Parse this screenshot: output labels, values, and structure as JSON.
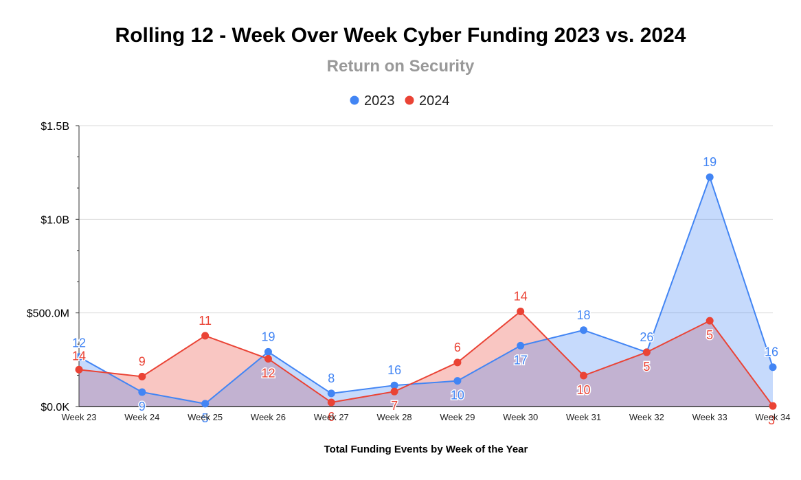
{
  "chart_data": {
    "type": "area",
    "title": "Rolling 12 - Week Over Week Cyber Funding 2023 vs. 2024",
    "subtitle": "Return on Security",
    "xlabel": "Total Funding Events by Week of the Year",
    "ylabel": "",
    "categories": [
      "Week 23",
      "Week 24",
      "Week 25",
      "Week 26",
      "Week 27",
      "Week 28",
      "Week 29",
      "Week 30",
      "Week 31",
      "Week 32",
      "Week 33",
      "Week 34"
    ],
    "ylim": [
      0,
      1500000000
    ],
    "y_ticks": [
      {
        "value": 0,
        "label": "$0.0K"
      },
      {
        "value": 500000000,
        "label": "$500.0M"
      },
      {
        "value": 1000000000,
        "label": "$1.0B"
      },
      {
        "value": 1500000000,
        "label": "$1.5B"
      }
    ],
    "grid": true,
    "legend_position": "top-center",
    "series": [
      {
        "name": "2023",
        "color": "#4285f4",
        "fill": "#c6d9f7",
        "values": [
          265000000,
          77000000,
          15000000,
          292000000,
          70000000,
          113000000,
          137000000,
          325000000,
          408000000,
          290000000,
          1225000000,
          210000000
        ],
        "labels": [
          "12",
          "9",
          "5",
          "19",
          "8",
          "16",
          "10",
          "17",
          "18",
          "26",
          "19",
          "16"
        ]
      },
      {
        "name": "2024",
        "color": "#ea4335",
        "fill": "#f4c2bf",
        "values": [
          197000000,
          160000000,
          378000000,
          255000000,
          22000000,
          80000000,
          235000000,
          508000000,
          165000000,
          290000000,
          458000000,
          3000000
        ],
        "labels": [
          "14",
          "9",
          "11",
          "12",
          "6",
          "7",
          "6",
          "14",
          "10",
          "5",
          "5",
          "3"
        ]
      }
    ]
  }
}
